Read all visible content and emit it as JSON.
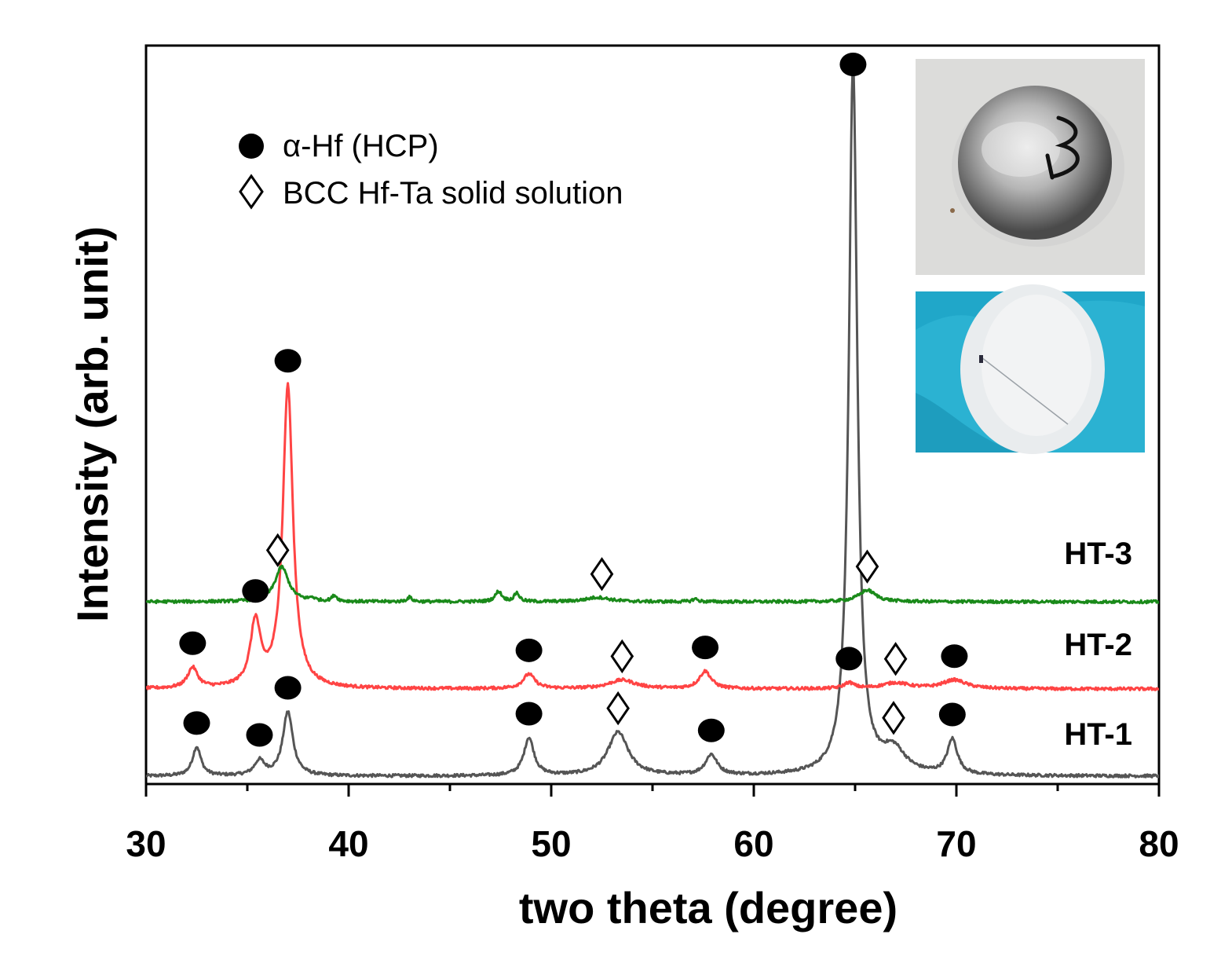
{
  "chart_data": {
    "type": "line",
    "xlabel": "two theta (degree)",
    "ylabel": "Intensity (arb. unit)",
    "xlim": [
      30,
      80
    ],
    "x_ticks": [
      "30",
      "40",
      "50",
      "60",
      "70",
      "80"
    ],
    "y_ticks_labeled": false,
    "grid": false,
    "legend_position": "top-left",
    "legend": [
      {
        "marker": "filled-circle",
        "label": "α-Hf (HCP)"
      },
      {
        "marker": "open-diamond",
        "label": "BCC Hf-Ta solid solution"
      }
    ],
    "series": [
      {
        "name": "HT-1",
        "color": "#555555",
        "baseline": 0,
        "peaks": [
          {
            "x": 32.5,
            "height": 10,
            "width": 0.25
          },
          {
            "x": 35.6,
            "height": 5,
            "width": 0.3
          },
          {
            "x": 37.0,
            "height": 22,
            "width": 0.3
          },
          {
            "x": 48.9,
            "height": 13,
            "width": 0.3
          },
          {
            "x": 53.3,
            "height": 15,
            "width": 0.6
          },
          {
            "x": 57.9,
            "height": 7,
            "width": 0.35
          },
          {
            "x": 64.9,
            "height": 245,
            "width": 0.25
          },
          {
            "x": 66.9,
            "height": 8,
            "width": 0.7
          },
          {
            "x": 69.8,
            "height": 12,
            "width": 0.3
          }
        ],
        "markers": [
          {
            "x": 32.5,
            "type": "alpha-Hf"
          },
          {
            "x": 35.6,
            "type": "alpha-Hf"
          },
          {
            "x": 37.0,
            "type": "alpha-Hf"
          },
          {
            "x": 48.9,
            "type": "alpha-Hf"
          },
          {
            "x": 53.3,
            "type": "BCC"
          },
          {
            "x": 57.9,
            "type": "alpha-Hf"
          },
          {
            "x": 64.9,
            "type": "alpha-Hf"
          },
          {
            "x": 66.9,
            "type": "BCC"
          },
          {
            "x": 69.8,
            "type": "alpha-Hf"
          }
        ]
      },
      {
        "name": "HT-2",
        "color": "#ff4444",
        "baseline": 30,
        "peaks": [
          {
            "x": 32.3,
            "height": 7,
            "width": 0.3
          },
          {
            "x": 35.4,
            "height": 22,
            "width": 0.3
          },
          {
            "x": 37.0,
            "height": 104,
            "width": 0.3
          },
          {
            "x": 48.9,
            "height": 5,
            "width": 0.35
          },
          {
            "x": 53.5,
            "height": 3,
            "width": 0.8
          },
          {
            "x": 57.6,
            "height": 6,
            "width": 0.35
          },
          {
            "x": 64.7,
            "height": 2,
            "width": 0.3
          },
          {
            "x": 67.0,
            "height": 2,
            "width": 0.8
          },
          {
            "x": 69.9,
            "height": 3,
            "width": 0.7
          }
        ],
        "markers": [
          {
            "x": 32.3,
            "type": "alpha-Hf"
          },
          {
            "x": 35.4,
            "type": "alpha-Hf"
          },
          {
            "x": 37.0,
            "type": "alpha-Hf"
          },
          {
            "x": 48.9,
            "type": "alpha-Hf"
          },
          {
            "x": 53.5,
            "type": "BCC"
          },
          {
            "x": 57.6,
            "type": "alpha-Hf"
          },
          {
            "x": 64.7,
            "type": "alpha-Hf"
          },
          {
            "x": 67.0,
            "type": "BCC"
          },
          {
            "x": 69.9,
            "type": "alpha-Hf"
          }
        ]
      },
      {
        "name": "HT-3",
        "color": "#1a8a1a",
        "baseline": 60,
        "peaks": [
          {
            "x": 36.7,
            "height": 12,
            "width": 0.4
          },
          {
            "x": 38.2,
            "height": 1,
            "width": 0.15
          },
          {
            "x": 39.3,
            "height": 2,
            "width": 0.15
          },
          {
            "x": 43.0,
            "height": 1.5,
            "width": 0.15
          },
          {
            "x": 47.4,
            "height": 3.5,
            "width": 0.2
          },
          {
            "x": 48.3,
            "height": 3,
            "width": 0.15
          },
          {
            "x": 52.3,
            "height": 1.5,
            "width": 0.7
          },
          {
            "x": 57.1,
            "height": 1,
            "width": 0.15
          },
          {
            "x": 65.6,
            "height": 4,
            "width": 0.5
          }
        ],
        "markers": [
          {
            "x": 36.5,
            "type": "BCC"
          },
          {
            "x": 52.5,
            "type": "BCC"
          },
          {
            "x": 65.6,
            "type": "BCC"
          }
        ]
      }
    ],
    "insets": [
      {
        "description_name": "button-sample-photo"
      },
      {
        "description_name": "foil-sample-photo"
      }
    ]
  }
}
